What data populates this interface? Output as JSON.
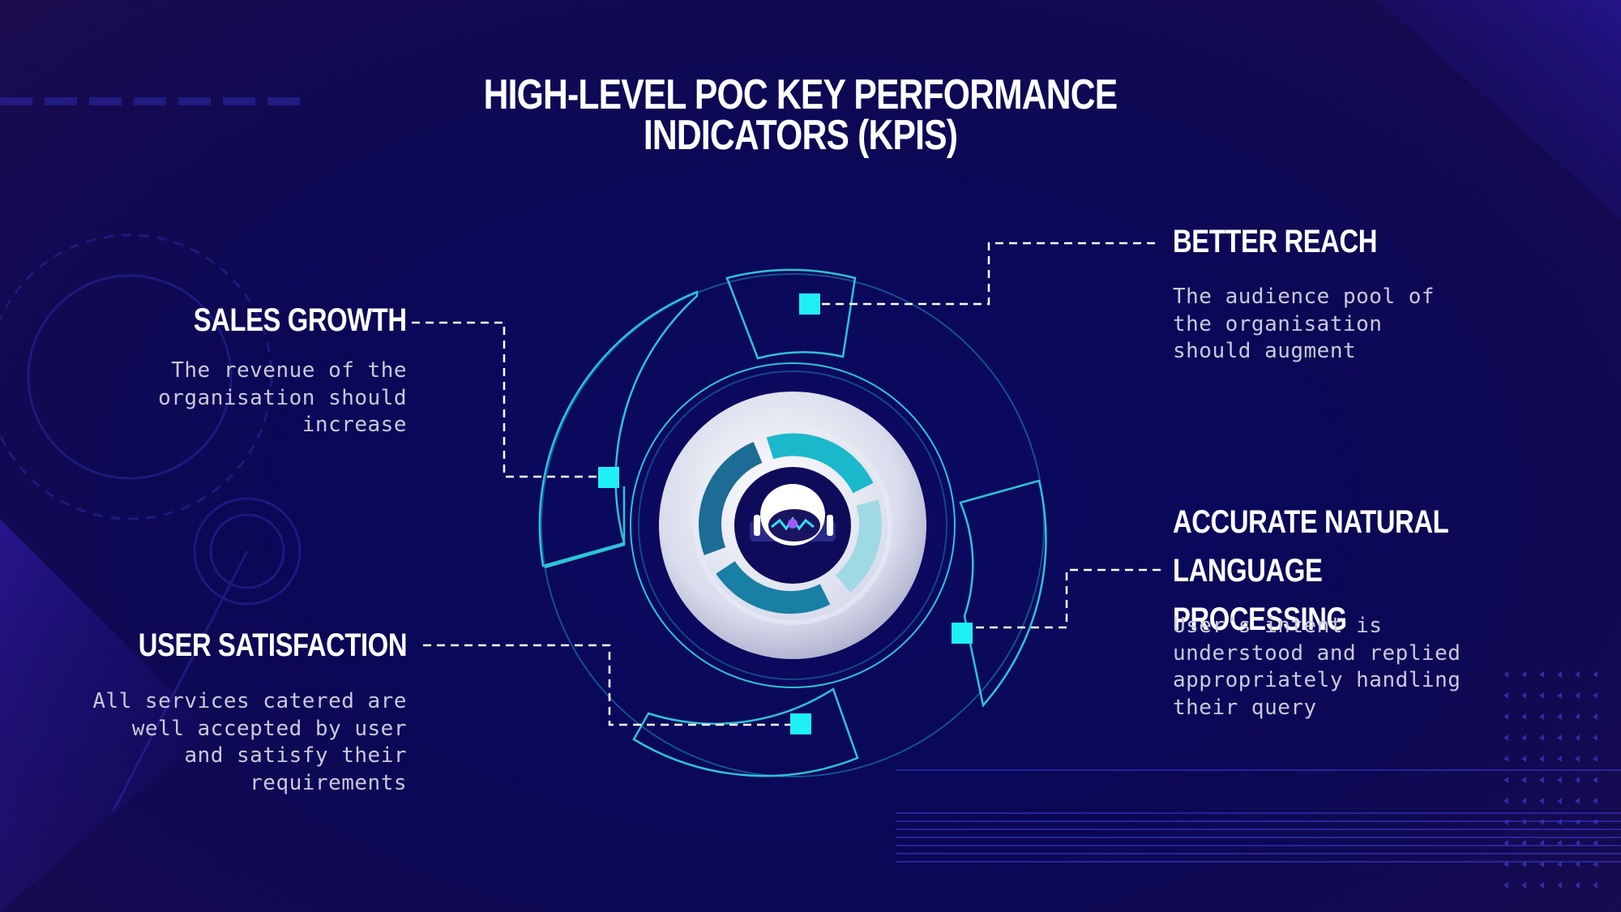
{
  "slide": {
    "title": "HIGH-LEVEL POC KEY PERFORMANCE INDICATORS (KPIS)"
  },
  "kpis": {
    "sales_growth": {
      "title": "SALES GROWTH",
      "description": "The revenue of the organisation should increase"
    },
    "user_satisfaction": {
      "title": "USER SATISFACTION",
      "description": "All services catered are well accepted by user and satisfy their requirements"
    },
    "better_reach": {
      "title": "BETTER REACH",
      "description": "The audience pool of the organisation should augment"
    },
    "accurate_nlp": {
      "title": "ACCURATE NATURAL LANGUAGE PROCESSING",
      "description": "User’s intent is understood and replied appropriately handling their query"
    }
  },
  "icons": {
    "center": "robot-head-icon",
    "marker": "cyan-square-marker"
  },
  "colors": {
    "background": "#0a0857",
    "accent_cyan": "#1ff0f5",
    "ring_teal": "#2ec4d6",
    "text_primary": "#ffffff",
    "text_secondary": "#c9c9de"
  }
}
